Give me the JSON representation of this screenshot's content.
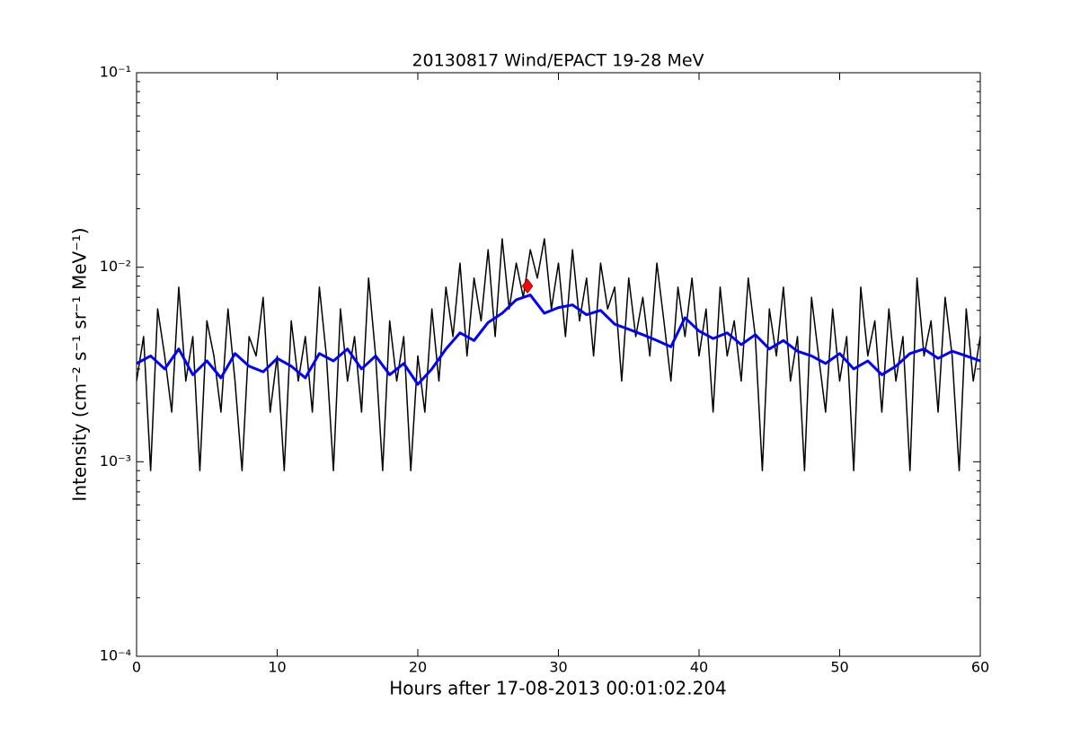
{
  "chart_data": {
    "type": "line",
    "title": "20130817 Wind/EPACT 19-28 MeV",
    "xlabel": "Hours after 17-08-2013 00:01:02.204",
    "ylabel": "Intensity (cm⁻² s⁻¹ sr⁻¹ MeV⁻¹)",
    "xlim": [
      0,
      60
    ],
    "xticks": [
      0,
      10,
      20,
      30,
      40,
      50,
      60
    ],
    "ylim": [
      0.0001,
      0.1
    ],
    "yticks": [
      {
        "value": 0.0001,
        "label": "10⁻⁴"
      },
      {
        "value": 0.001,
        "label": "10⁻³"
      },
      {
        "value": 0.01,
        "label": "10⁻²"
      },
      {
        "value": 0.1,
        "label": "10⁻¹"
      }
    ],
    "log_y": true,
    "series": [
      {
        "color": "#000000",
        "x": [
          0,
          0.5,
          1,
          1.5,
          2,
          2.5,
          3,
          3.5,
          4,
          4.5,
          5,
          5.5,
          6,
          6.5,
          7,
          7.5,
          8,
          8.5,
          9,
          9.5,
          10,
          10.5,
          11,
          11.5,
          12,
          12.5,
          13,
          13.5,
          14,
          14.5,
          15,
          15.5,
          16,
          16.5,
          17,
          17.5,
          18,
          18.5,
          19,
          19.5,
          20,
          20.5,
          21,
          21.5,
          22,
          22.5,
          23,
          23.5,
          24,
          24.5,
          25,
          25.5,
          26,
          26.5,
          27,
          27.5,
          28,
          28.5,
          29,
          29.5,
          30,
          30.5,
          31,
          31.5,
          32,
          32.5,
          33,
          33.5,
          34,
          34.5,
          35,
          35.5,
          36,
          36.5,
          37,
          37.5,
          38,
          38.5,
          39,
          39.5,
          40,
          40.5,
          41,
          41.5,
          42,
          42.5,
          43,
          43.5,
          44,
          44.5,
          45,
          45.5,
          46,
          46.5,
          47,
          47.5,
          48,
          48.5,
          49,
          49.5,
          50,
          50.5,
          51,
          51.5,
          52,
          52.5,
          53,
          53.5,
          54,
          54.5,
          55,
          55.5,
          56,
          56.5,
          57,
          57.5,
          58,
          58.5,
          59,
          59.5,
          60
        ],
        "values": [
          0.0026,
          0.0044,
          0.0009,
          0.0061,
          0.0035,
          0.0018,
          0.0079,
          0.0026,
          0.0044,
          0.0009,
          0.0053,
          0.0035,
          0.0018,
          0.0061,
          0.0026,
          0.0009,
          0.0044,
          0.0035,
          0.007,
          0.0018,
          0.0035,
          0.0009,
          0.0053,
          0.0026,
          0.0044,
          0.0018,
          0.0079,
          0.0035,
          0.0009,
          0.0061,
          0.0026,
          0.0044,
          0.0018,
          0.0088,
          0.0035,
          0.0009,
          0.0053,
          0.0026,
          0.0044,
          0.0009,
          0.0035,
          0.0018,
          0.0061,
          0.0026,
          0.0079,
          0.0044,
          0.0105,
          0.0035,
          0.0088,
          0.0053,
          0.0123,
          0.0044,
          0.014,
          0.0061,
          0.0105,
          0.007,
          0.0123,
          0.0088,
          0.014,
          0.0061,
          0.0105,
          0.0044,
          0.0123,
          0.0053,
          0.0088,
          0.0035,
          0.0105,
          0.0061,
          0.0079,
          0.0026,
          0.0088,
          0.0044,
          0.007,
          0.0035,
          0.0105,
          0.0053,
          0.0026,
          0.0079,
          0.0044,
          0.0088,
          0.0035,
          0.0061,
          0.0018,
          0.0079,
          0.0035,
          0.0053,
          0.0026,
          0.0088,
          0.0044,
          0.0009,
          0.0061,
          0.0035,
          0.0079,
          0.0026,
          0.0044,
          0.0009,
          0.007,
          0.0035,
          0.0018,
          0.0061,
          0.0026,
          0.0044,
          0.0009,
          0.0079,
          0.0035,
          0.0053,
          0.0018,
          0.0061,
          0.0026,
          0.0044,
          0.0009,
          0.0088,
          0.0035,
          0.0053,
          0.0018,
          0.007,
          0.0035,
          0.0009,
          0.0061,
          0.0026,
          0.0044
        ]
      },
      {
        "color": "#0000ff",
        "x": [
          0,
          1,
          2,
          3,
          4,
          5,
          6,
          7,
          8,
          9,
          10,
          11,
          12,
          13,
          14,
          15,
          16,
          17,
          18,
          19,
          20,
          21,
          22,
          23,
          24,
          25,
          26,
          27,
          28,
          29,
          30,
          31,
          32,
          33,
          34,
          35,
          36,
          37,
          38,
          39,
          40,
          41,
          42,
          43,
          44,
          45,
          46,
          47,
          48,
          49,
          50,
          51,
          52,
          53,
          54,
          55,
          56,
          57,
          58,
          59,
          60
        ],
        "values": [
          0.0032,
          0.0035,
          0.003,
          0.0038,
          0.0028,
          0.0033,
          0.0027,
          0.0036,
          0.0031,
          0.0029,
          0.0034,
          0.0031,
          0.0027,
          0.0036,
          0.0033,
          0.0038,
          0.003,
          0.0035,
          0.0028,
          0.0032,
          0.0025,
          0.003,
          0.0038,
          0.0046,
          0.0042,
          0.0052,
          0.0058,
          0.0068,
          0.0072,
          0.0058,
          0.0062,
          0.0064,
          0.0057,
          0.006,
          0.0051,
          0.0048,
          0.0045,
          0.0042,
          0.0039,
          0.0055,
          0.0047,
          0.0043,
          0.0046,
          0.004,
          0.0045,
          0.0038,
          0.0042,
          0.0037,
          0.0035,
          0.0032,
          0.0036,
          0.003,
          0.0033,
          0.0028,
          0.0031,
          0.0036,
          0.0038,
          0.0034,
          0.0037,
          0.0035,
          0.0033
        ]
      }
    ],
    "marker": {
      "x": 27.8,
      "y": 0.008,
      "color": "#ff0000"
    }
  }
}
